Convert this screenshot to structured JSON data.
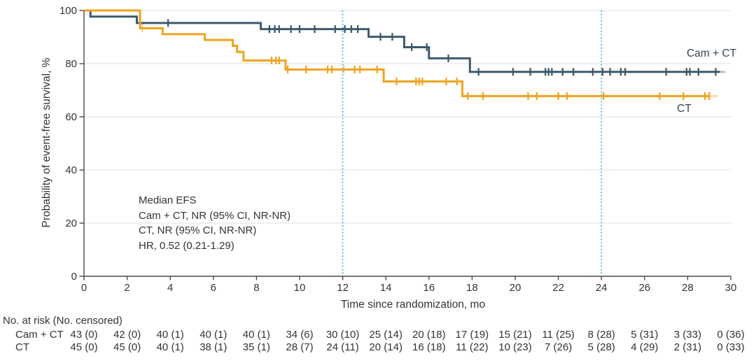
{
  "figure": {
    "background": "#ffffff",
    "text_color": "#333333",
    "axis_color": "#4a4a4a",
    "grid_color": "#ebebeb"
  },
  "axes": {
    "x": {
      "title": "Time since randomization, mo",
      "min": 0,
      "max": 30,
      "ticks": [
        0,
        2,
        4,
        6,
        8,
        10,
        12,
        14,
        16,
        18,
        20,
        22,
        24,
        26,
        28,
        30
      ]
    },
    "y": {
      "title": "Probability of event-free survival, %",
      "min": 0,
      "max": 100,
      "ticks": [
        0,
        20,
        40,
        60,
        80,
        100
      ],
      "gridlines": [
        20,
        40,
        60,
        80,
        100
      ]
    }
  },
  "reference_lines": {
    "x_values": [
      12,
      24
    ],
    "color": "#33b9e4",
    "style": "dotted"
  },
  "chart_data": {
    "type": "line",
    "subtype": "kaplan-meier-step",
    "xlabel": "Time since randomization, mo",
    "ylabel": "Probability of event-free survival, %",
    "xlim": [
      0,
      30
    ],
    "ylim": [
      0,
      100
    ],
    "grid": "horizontal-light",
    "series": [
      {
        "name": "Cam + CT",
        "color": "#3d5a6c",
        "start": [
          0,
          100
        ],
        "steps": [
          [
            0.3,
            97.7
          ],
          [
            2.45,
            95.3
          ],
          [
            8.2,
            93.0
          ],
          [
            13.2,
            90.1
          ],
          [
            14.85,
            86.2
          ],
          [
            16.0,
            82.0
          ],
          [
            17.9,
            76.9
          ]
        ],
        "end_month": 29.5,
        "fade_to": 29.75,
        "censors": [
          [
            3.9,
            95.3
          ],
          [
            8.6,
            93.0
          ],
          [
            8.85,
            93.0
          ],
          [
            9.05,
            93.0
          ],
          [
            9.6,
            93.0
          ],
          [
            10.0,
            93.0
          ],
          [
            10.7,
            93.0
          ],
          [
            11.65,
            93.0
          ],
          [
            12.1,
            93.0
          ],
          [
            12.4,
            93.0
          ],
          [
            12.7,
            93.0
          ],
          [
            13.75,
            90.1
          ],
          [
            14.3,
            90.1
          ],
          [
            15.2,
            86.2
          ],
          [
            15.9,
            86.2
          ],
          [
            16.9,
            82.0
          ],
          [
            18.3,
            76.9
          ],
          [
            19.9,
            76.9
          ],
          [
            20.7,
            76.9
          ],
          [
            21.4,
            76.9
          ],
          [
            21.55,
            76.9
          ],
          [
            21.7,
            76.9
          ],
          [
            22.2,
            76.9
          ],
          [
            22.7,
            76.9
          ],
          [
            23.6,
            76.9
          ],
          [
            24.05,
            76.9
          ],
          [
            24.4,
            76.9
          ],
          [
            24.9,
            76.9
          ],
          [
            25.1,
            76.9
          ],
          [
            27.0,
            76.9
          ],
          [
            27.95,
            76.9
          ],
          [
            28.1,
            76.9
          ],
          [
            28.5,
            76.9
          ],
          [
            29.3,
            76.9
          ]
        ]
      },
      {
        "name": "CT",
        "color": "#f0a31f",
        "start": [
          0,
          100
        ],
        "steps": [
          [
            2.6,
            93.3
          ],
          [
            3.65,
            91.1
          ],
          [
            5.6,
            88.9
          ],
          [
            6.9,
            86.7
          ],
          [
            7.1,
            84.4
          ],
          [
            7.4,
            81.2
          ],
          [
            9.35,
            77.8
          ],
          [
            13.9,
            73.3
          ],
          [
            17.55,
            67.8
          ]
        ],
        "end_month": 29.05,
        "fade_to": 29.4,
        "censors": [
          [
            2.7,
            93.3,
            0.5
          ],
          [
            8.7,
            81.2
          ],
          [
            8.9,
            81.2
          ],
          [
            9.05,
            81.2
          ],
          [
            9.45,
            77.8
          ],
          [
            10.3,
            77.8
          ],
          [
            11.3,
            77.8
          ],
          [
            11.5,
            77.8
          ],
          [
            12.05,
            77.8,
            0.5
          ],
          [
            12.55,
            77.8
          ],
          [
            12.8,
            77.8
          ],
          [
            13.6,
            77.8
          ],
          [
            14.5,
            73.3
          ],
          [
            15.4,
            73.3
          ],
          [
            15.55,
            73.3
          ],
          [
            15.7,
            73.3
          ],
          [
            16.8,
            73.3
          ],
          [
            17.3,
            73.3
          ],
          [
            17.8,
            67.8
          ],
          [
            18.5,
            67.8
          ],
          [
            20.6,
            67.8
          ],
          [
            21.0,
            67.8
          ],
          [
            22.0,
            67.8
          ],
          [
            22.4,
            67.8
          ],
          [
            24.1,
            67.8
          ],
          [
            26.7,
            67.8
          ],
          [
            27.8,
            67.8
          ],
          [
            28.8,
            67.8
          ],
          [
            29.0,
            67.8
          ]
        ]
      }
    ]
  },
  "annotation": {
    "lines": [
      "Median EFS",
      "Cam + CT, NR (95% CI, NR-NR)",
      "CT, NR (95% CI, NR-NR)",
      "HR, 0.52 (0.21-1.29)"
    ]
  },
  "risk_table": {
    "header": "No. at risk (No. censored)",
    "rows": [
      {
        "label": "Cam + CT",
        "values": [
          "43 (0)",
          "42 (0)",
          "40 (1)",
          "40 (1)",
          "40 (1)",
          "34 (6)",
          "30 (10)",
          "25 (14)",
          "20 (18)",
          "17 (19)",
          "15 (21)",
          "11 (25)",
          "8 (28)",
          "5 (31)",
          "3 (33)",
          "0 (36)"
        ]
      },
      {
        "label": "CT",
        "values": [
          "45 (0)",
          "45 (0)",
          "40 (1)",
          "38 (1)",
          "35 (1)",
          "28 (7)",
          "24 (11)",
          "20 (14)",
          "16 (18)",
          "11 (22)",
          "10 (23)",
          "7 (26)",
          "5 (28)",
          "4 (29)",
          "2 (31)",
          "0 (33)"
        ]
      }
    ]
  }
}
